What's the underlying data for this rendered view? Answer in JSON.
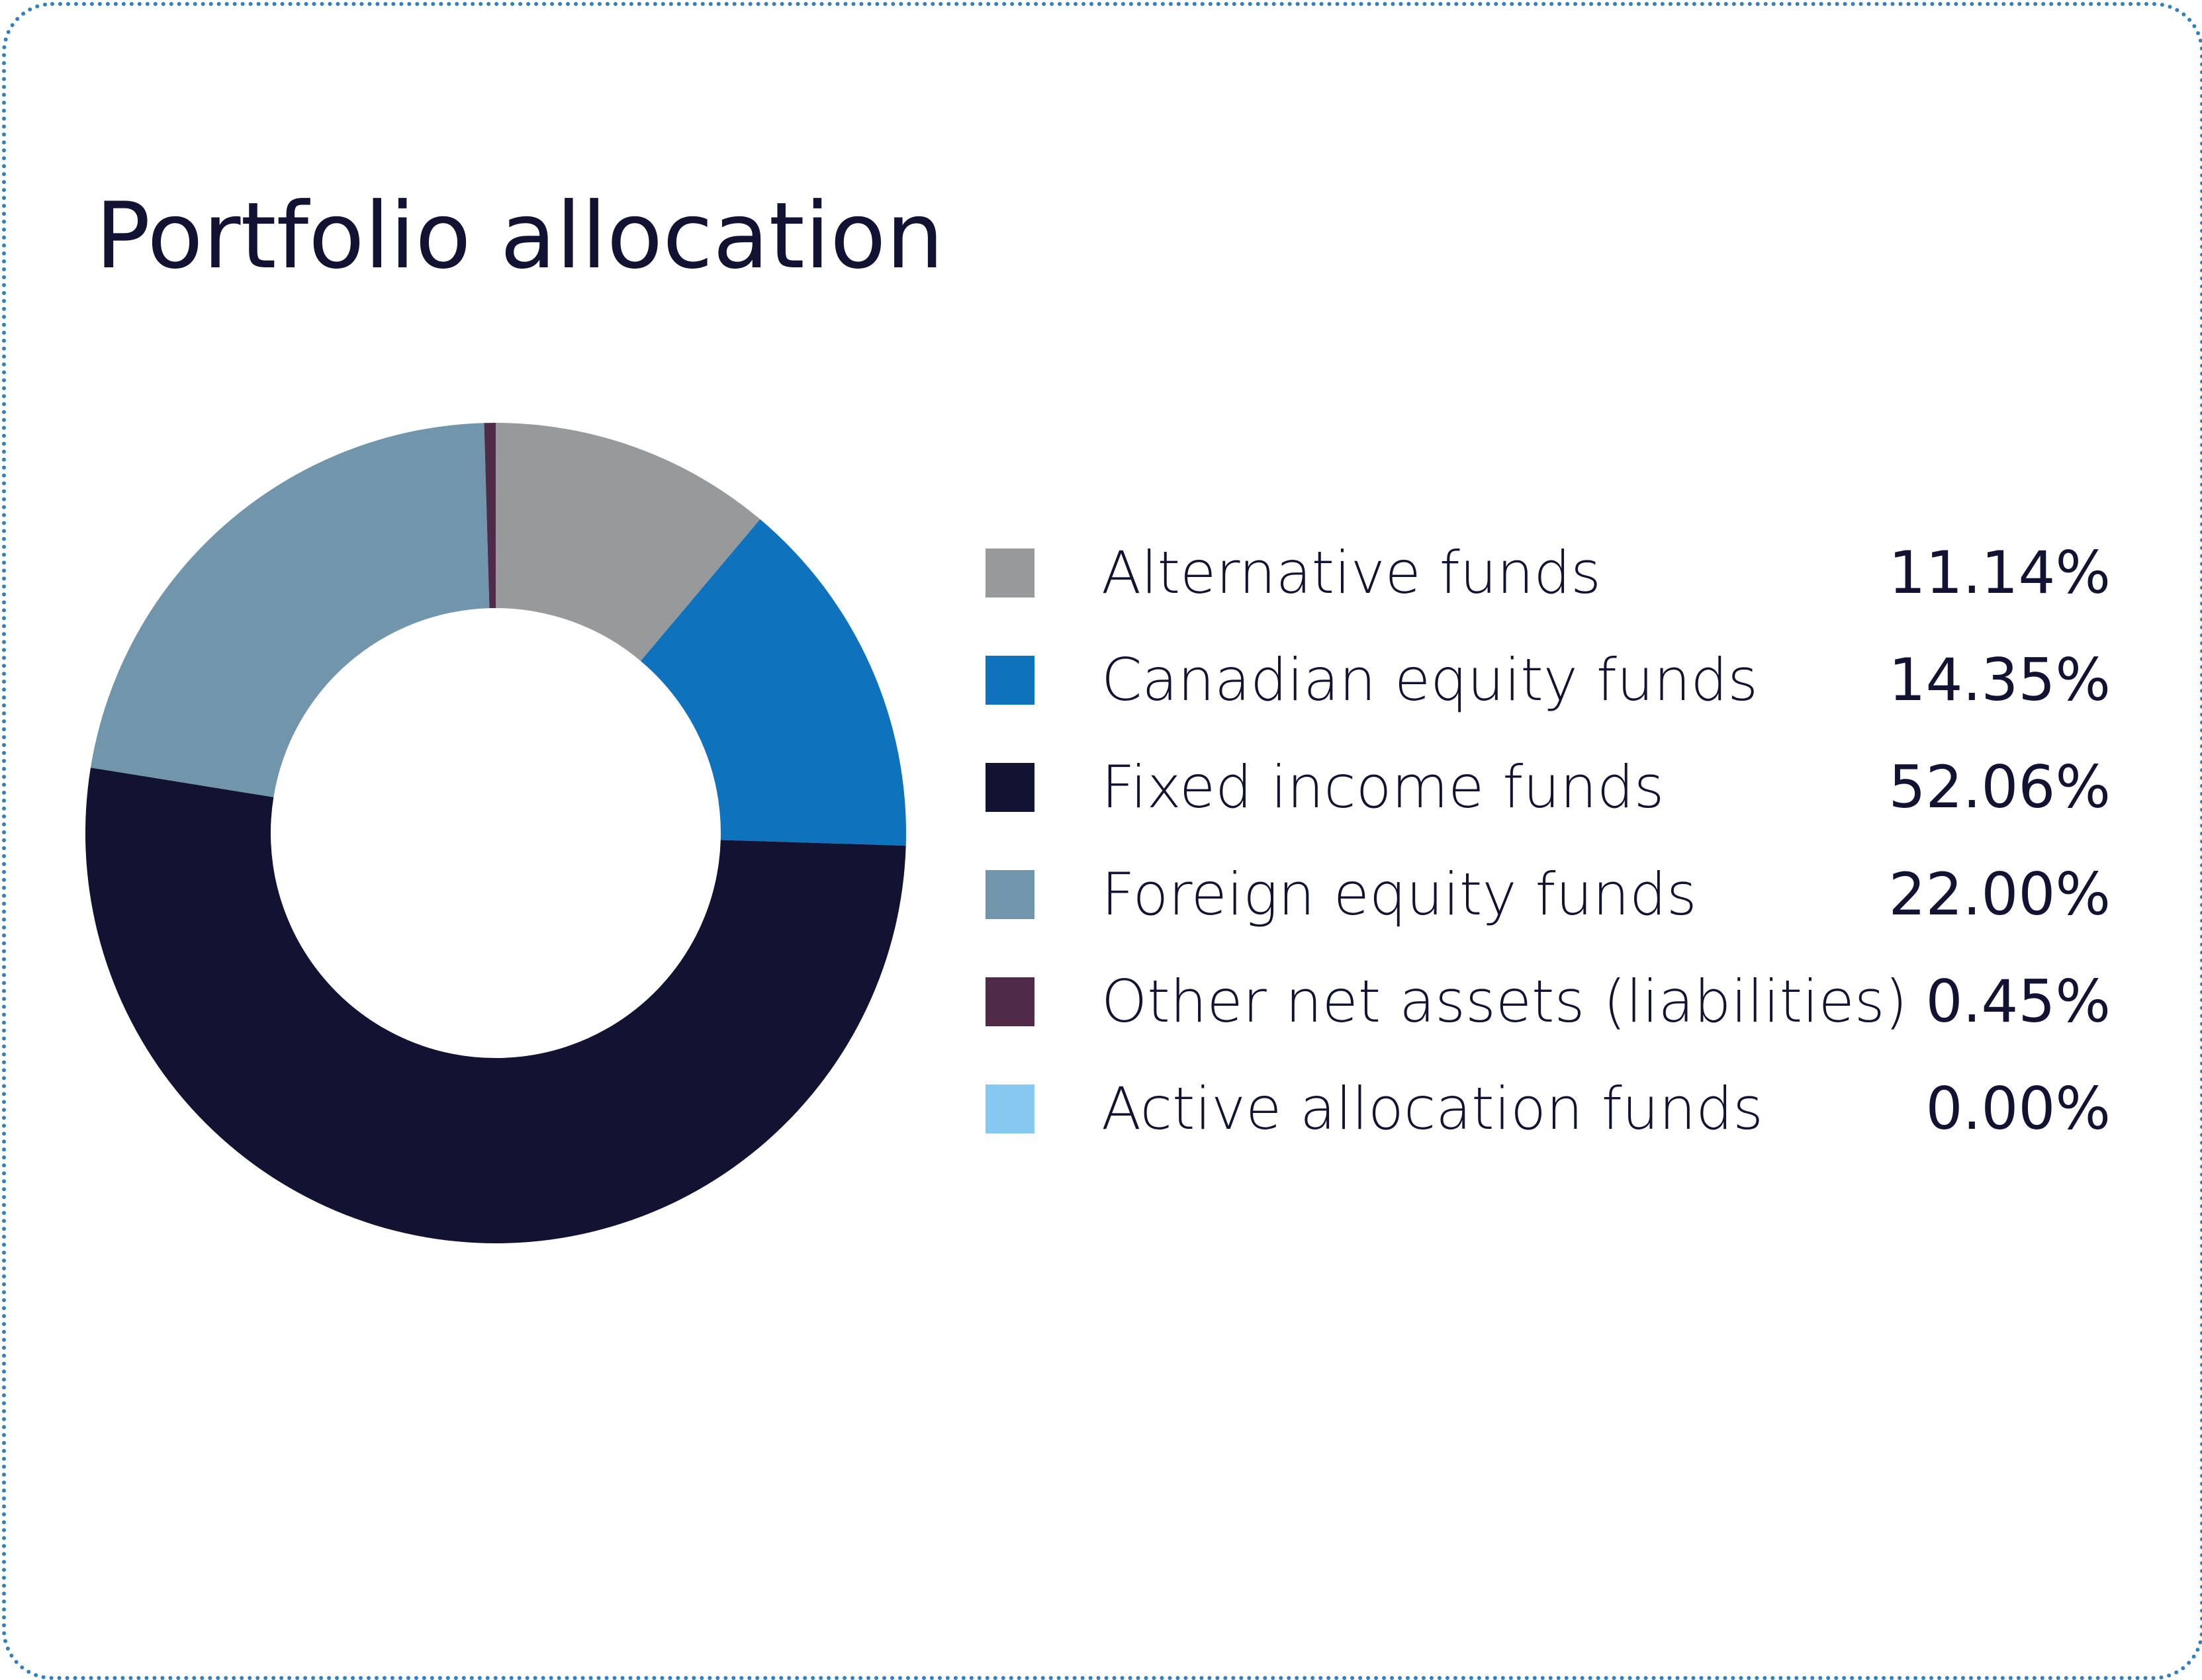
{
  "title": "Portfolio allocation",
  "colors": {
    "border": "#2f7fc1",
    "text": "#121232"
  },
  "chart_data": {
    "type": "pie",
    "title": "Portfolio allocation",
    "legend_placement": "right",
    "slices": [
      {
        "label": "Alternative funds",
        "value": 11.14,
        "display": "11.14%",
        "color": "#98999b"
      },
      {
        "label": "Canadian equity funds",
        "value": 14.35,
        "display": "14.35%",
        "color": "#0e73bc"
      },
      {
        "label": "Fixed income funds",
        "value": 52.06,
        "display": "52.06%",
        "color": "#121232"
      },
      {
        "label": "Foreign equity funds",
        "value": 22.0,
        "display": "22.00%",
        "color": "#7196ac"
      },
      {
        "label": "Other net assets (liabilities)",
        "value": 0.45,
        "display": "0.45%",
        "color": "#4f2a49"
      },
      {
        "label": "Active allocation funds",
        "value": 0.0,
        "display": "0.00%",
        "color": "#86c8f0"
      }
    ]
  }
}
